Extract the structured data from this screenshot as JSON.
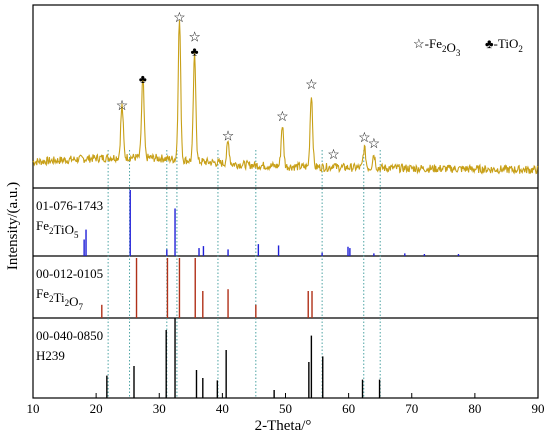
{
  "chart_data": {
    "type": "line",
    "xlabel": "2-Theta/°",
    "ylabel": "Intensity/(a.u.)",
    "xlim": [
      10,
      90
    ],
    "xticks": [
      10,
      20,
      30,
      40,
      50,
      60,
      70,
      80,
      90
    ],
    "colors": {
      "pattern": "#c8a018",
      "ref_1": "#2020d8",
      "ref_2": "#b03018",
      "ref_3": "#000000",
      "guide": "#3a9a9a"
    },
    "legend": {
      "placement": "top-right",
      "items": [
        {
          "marker": "☆",
          "label_main": "-Fe",
          "sub": "2",
          "label_tail": "O",
          "sub2": "3"
        },
        {
          "marker": "♣",
          "label_main": "-TiO",
          "sub": "2",
          "label_tail": "",
          "sub2": ""
        }
      ]
    },
    "pattern": {
      "baseline": 12,
      "peaks": [
        {
          "x": 24.1,
          "y": 42
        },
        {
          "x": 27.4,
          "y": 60
        },
        {
          "x": 33.2,
          "y": 100
        },
        {
          "x": 35.6,
          "y": 78
        },
        {
          "x": 40.9,
          "y": 22
        },
        {
          "x": 49.5,
          "y": 35
        },
        {
          "x": 54.1,
          "y": 56
        },
        {
          "x": 57.6,
          "y": 10
        },
        {
          "x": 62.5,
          "y": 21
        },
        {
          "x": 64.0,
          "y": 17
        }
      ]
    },
    "peak_markers": [
      {
        "x": 24.1,
        "symbol": "☆"
      },
      {
        "x": 27.4,
        "symbol": "♣"
      },
      {
        "x": 33.2,
        "symbol": "☆"
      },
      {
        "x": 35.6,
        "symbol": "♣"
      },
      {
        "x": 35.6,
        "symbol": "☆"
      },
      {
        "x": 40.9,
        "symbol": "☆"
      },
      {
        "x": 49.5,
        "symbol": "☆"
      },
      {
        "x": 54.1,
        "symbol": "☆"
      },
      {
        "x": 57.6,
        "symbol": "☆"
      },
      {
        "x": 62.5,
        "symbol": "☆"
      },
      {
        "x": 64.0,
        "symbol": "☆"
      }
    ],
    "guides": [
      21.9,
      25.3,
      31.2,
      32.8,
      39.3,
      45.3,
      55.8,
      62.4,
      65.0
    ],
    "references": [
      {
        "pdf": "01-076-1743",
        "formula": [
          [
            "Fe",
            ""
          ],
          [
            "2",
            "sub"
          ],
          [
            "TiO",
            ""
          ],
          [
            "5",
            "sub"
          ]
        ],
        "color_key": "ref_1",
        "lines": [
          [
            18.1,
            25
          ],
          [
            18.4,
            40
          ],
          [
            25.4,
            100
          ],
          [
            32.5,
            72
          ],
          [
            31.2,
            10
          ],
          [
            36.3,
            12
          ],
          [
            37.0,
            15
          ],
          [
            40.9,
            10
          ],
          [
            45.7,
            18
          ],
          [
            48.9,
            16
          ],
          [
            55.8,
            5
          ],
          [
            59.9,
            14
          ],
          [
            60.2,
            12
          ],
          [
            64.0,
            4
          ],
          [
            68.9,
            4
          ],
          [
            72.0,
            3
          ],
          [
            77.4,
            3
          ]
        ]
      },
      {
        "pdf": "00-012-0105",
        "formula": [
          [
            "Fe",
            ""
          ],
          [
            "2",
            "sub"
          ],
          [
            "Ti",
            ""
          ],
          [
            "2",
            "sub"
          ],
          [
            "O",
            ""
          ],
          [
            "7",
            "sub"
          ]
        ],
        "color_key": "ref_2",
        "lines": [
          [
            20.9,
            22
          ],
          [
            26.4,
            100
          ],
          [
            31.3,
            100
          ],
          [
            33.2,
            100
          ],
          [
            35.7,
            100
          ],
          [
            36.9,
            45
          ],
          [
            40.9,
            48
          ],
          [
            45.3,
            22
          ],
          [
            53.6,
            45
          ],
          [
            54.2,
            45
          ]
        ]
      },
      {
        "pdf": "00-040-0850",
        "formula": [
          [
            "H239",
            ""
          ]
        ],
        "color_key": "ref_3",
        "lines": [
          [
            21.7,
            28
          ],
          [
            26.0,
            40
          ],
          [
            31.1,
            85
          ],
          [
            32.5,
            100
          ],
          [
            35.9,
            35
          ],
          [
            36.9,
            25
          ],
          [
            39.2,
            22
          ],
          [
            40.6,
            60
          ],
          [
            48.2,
            10
          ],
          [
            53.7,
            45
          ],
          [
            54.1,
            78
          ],
          [
            55.9,
            52
          ],
          [
            62.2,
            23
          ],
          [
            64.9,
            23
          ]
        ]
      }
    ]
  }
}
